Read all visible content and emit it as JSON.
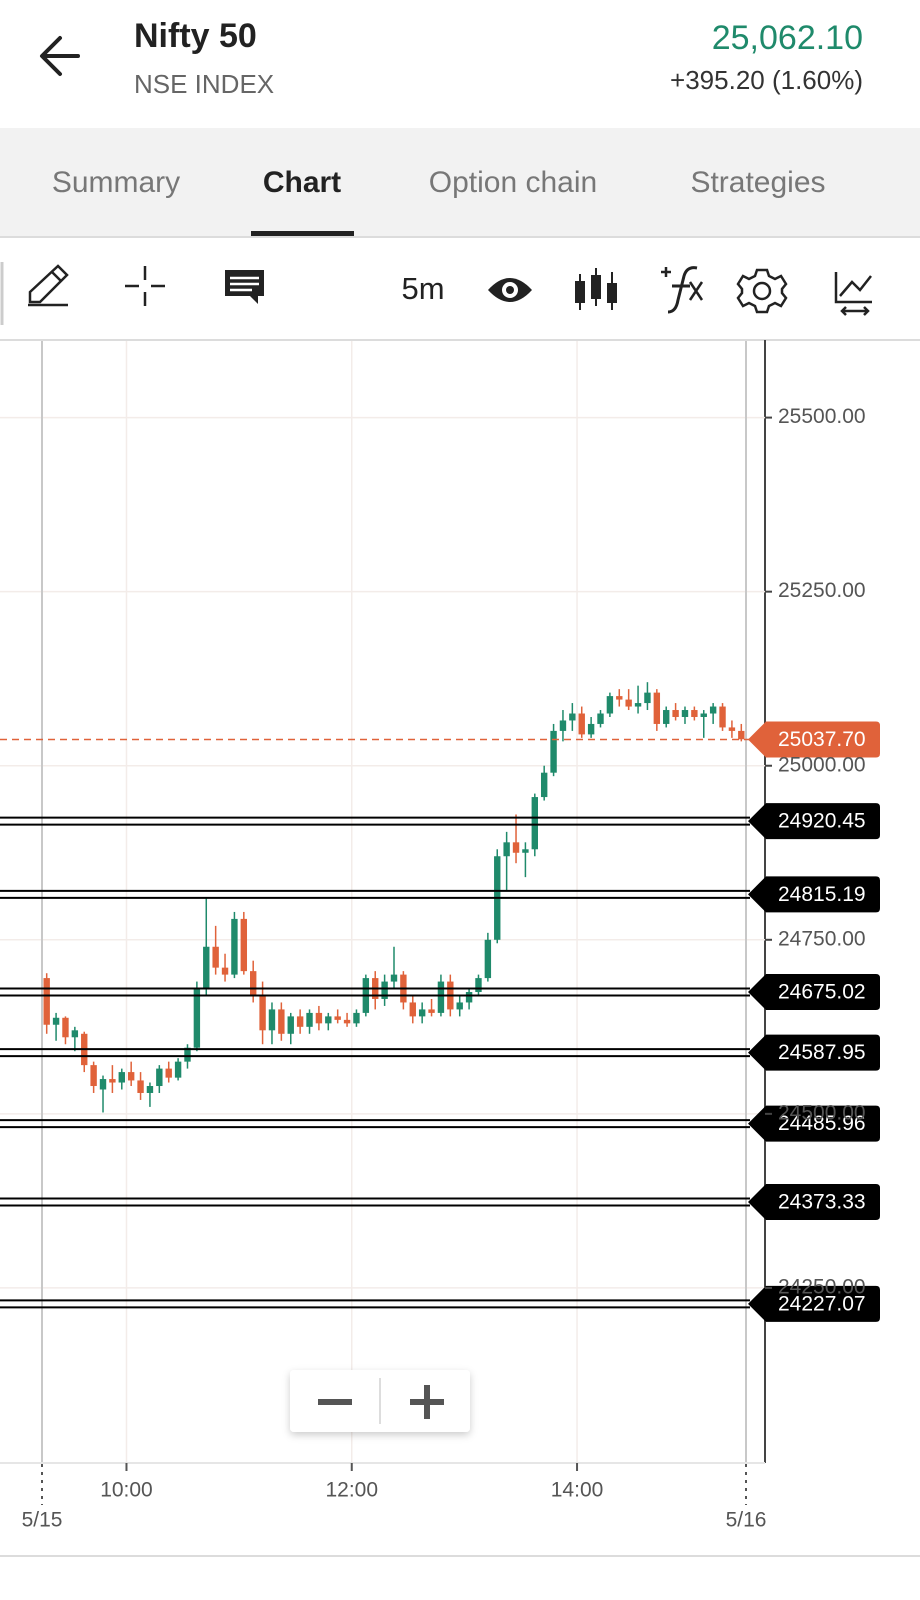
{
  "header": {
    "title": "Nifty 50",
    "subtitle": "NSE INDEX",
    "price": "25,062.10",
    "change": "+395.20 (1.60%)"
  },
  "tabs": [
    "Summary",
    "Chart",
    "Option chain",
    "Strategies"
  ],
  "active_tab": 1,
  "toolbar": {
    "interval": "5m"
  },
  "chart_data": {
    "type": "candlestick",
    "up_color": "#1f8a6b",
    "down_color": "#e0623a",
    "grid": true,
    "ylim": [
      24000,
      25610
    ],
    "yticks": [
      {
        "value": 24250,
        "label": "24250.00"
      },
      {
        "value": 24500,
        "label": "24500.00"
      },
      {
        "value": 24750,
        "label": "24750.00"
      },
      {
        "value": 25000,
        "label": "25000.00"
      },
      {
        "value": 25250,
        "label": "25250.00"
      },
      {
        "value": 25500,
        "label": "25500.00"
      }
    ],
    "xlim": [
      "09:15",
      "15:30"
    ],
    "xticks": [
      "10:00",
      "12:00",
      "14:00"
    ],
    "day_labels": [
      {
        "value": "09:15",
        "label": "5/15"
      },
      {
        "value": "15:30",
        "label": "5/16"
      }
    ],
    "x": [
      "09:15",
      "09:20",
      "09:25",
      "09:30",
      "09:35",
      "09:40",
      "09:45",
      "09:50",
      "09:55",
      "10:00",
      "10:05",
      "10:10",
      "10:15",
      "10:20",
      "10:25",
      "10:30",
      "10:35",
      "10:40",
      "10:45",
      "10:50",
      "10:55",
      "11:00",
      "11:05",
      "11:10",
      "11:15",
      "11:20",
      "11:25",
      "11:30",
      "11:35",
      "11:40",
      "11:45",
      "11:50",
      "11:55",
      "12:00",
      "12:05",
      "12:10",
      "12:15",
      "12:20",
      "12:25",
      "12:30",
      "12:35",
      "12:40",
      "12:45",
      "12:50",
      "12:55",
      "13:00",
      "13:05",
      "13:10",
      "13:15",
      "13:20",
      "13:25",
      "13:30",
      "13:35",
      "13:40",
      "13:45",
      "13:50",
      "13:55",
      "14:00",
      "14:05",
      "14:10",
      "14:15",
      "14:20",
      "14:25",
      "14:30",
      "14:35",
      "14:40",
      "14:45",
      "14:50",
      "14:55",
      "15:00",
      "15:05",
      "15:10",
      "15:15",
      "15:20",
      "15:25"
    ],
    "open": [
      24695,
      24628,
      24638,
      24610,
      24615,
      24570,
      24535,
      24550,
      24545,
      24560,
      24548,
      24530,
      24540,
      24565,
      24552,
      24575,
      24595,
      24680,
      24740,
      24710,
      24700,
      24780,
      24705,
      24670,
      24620,
      24650,
      24615,
      24640,
      24625,
      24645,
      24630,
      24640,
      24635,
      24630,
      24645,
      24695,
      24665,
      24690,
      24700,
      24660,
      24640,
      24650,
      24645,
      24690,
      24650,
      24660,
      24675,
      24695,
      24750,
      24870,
      24890,
      24875,
      24880,
      24955,
      24990,
      25050,
      25065,
      25075,
      25045,
      25060,
      25075,
      25100,
      25095,
      25085,
      25090,
      25105,
      25060,
      25080,
      25070,
      25080,
      25070,
      25075,
      25085,
      25055,
      25050
    ],
    "high": [
      24702,
      24645,
      24640,
      24625,
      24618,
      24575,
      24555,
      24570,
      24565,
      24575,
      24560,
      24545,
      24570,
      24575,
      24580,
      24600,
      24690,
      24810,
      24770,
      24730,
      24790,
      24790,
      24720,
      24690,
      24660,
      24660,
      24645,
      24650,
      24650,
      24655,
      24645,
      24650,
      24645,
      24650,
      24700,
      24705,
      24700,
      24740,
      24705,
      24670,
      24660,
      24665,
      24700,
      24700,
      24670,
      24680,
      24700,
      24760,
      24880,
      24905,
      24930,
      24890,
      24960,
      25000,
      25060,
      25080,
      25090,
      25085,
      25070,
      25080,
      25105,
      25110,
      25110,
      25115,
      25120,
      25110,
      25085,
      25090,
      25085,
      25085,
      25080,
      25090,
      25090,
      25065,
      25060
    ],
    "low": [
      24615,
      24605,
      24600,
      24590,
      24560,
      24530,
      24502,
      24530,
      24535,
      24540,
      24520,
      24510,
      24530,
      24545,
      24548,
      24565,
      24590,
      24670,
      24700,
      24690,
      24695,
      24700,
      24660,
      24600,
      24600,
      24605,
      24600,
      24615,
      24615,
      24620,
      24620,
      24630,
      24625,
      24625,
      24640,
      24650,
      24655,
      24680,
      24650,
      24630,
      24630,
      24640,
      24640,
      24640,
      24640,
      24650,
      24670,
      24690,
      24745,
      24820,
      24860,
      24840,
      24870,
      24950,
      24985,
      25035,
      25050,
      25040,
      25040,
      25055,
      25070,
      25085,
      25080,
      25075,
      25080,
      25050,
      25055,
      25065,
      25060,
      25065,
      25040,
      25060,
      25050,
      25040,
      25035
    ],
    "close": [
      24628,
      24638,
      24610,
      24620,
      24570,
      24540,
      24550,
      24545,
      24560,
      24548,
      24530,
      24540,
      24565,
      24552,
      24575,
      24595,
      24680,
      24740,
      24710,
      24700,
      24780,
      24705,
      24670,
      24620,
      24650,
      24615,
      24640,
      24625,
      24645,
      24630,
      24640,
      24635,
      24630,
      24645,
      24695,
      24665,
      24690,
      24700,
      24660,
      24640,
      24650,
      24645,
      24690,
      24650,
      24660,
      24675,
      24695,
      24750,
      24870,
      24890,
      24875,
      24880,
      24955,
      24990,
      25050,
      25065,
      25075,
      25045,
      25060,
      25075,
      25100,
      25095,
      25085,
      25090,
      25105,
      25060,
      25080,
      25070,
      25080,
      25070,
      25075,
      25085,
      25055,
      25050,
      25038
    ],
    "levels": [
      24920.45,
      24815.19,
      24675.02,
      24587.95,
      24485.96,
      24373.33,
      24227.07
    ],
    "level_color": "#000000",
    "last_price": {
      "value": 25037.7,
      "label": "25037.70"
    },
    "last_price_color": "#e0623a"
  }
}
